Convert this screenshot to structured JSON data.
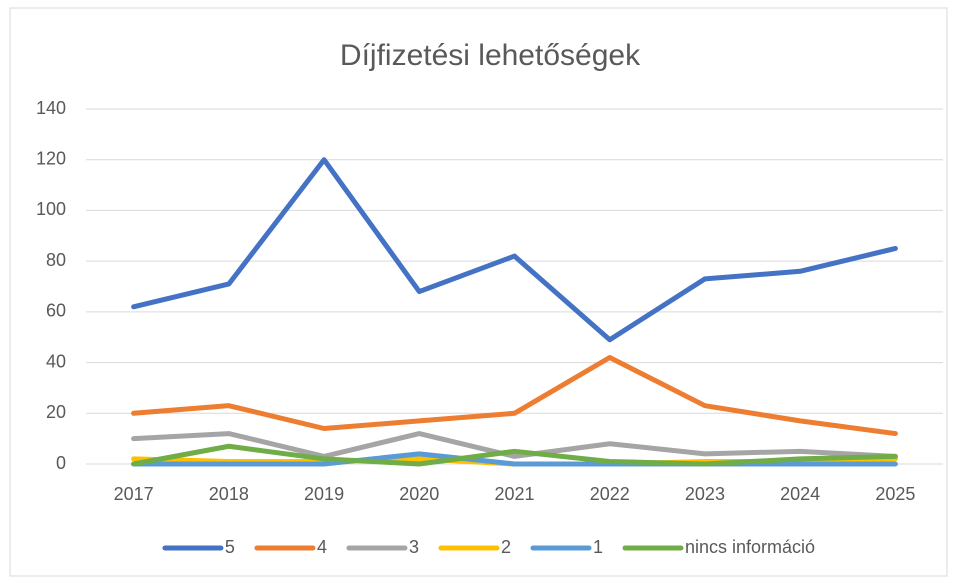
{
  "chart_data": {
    "type": "line",
    "title": "Díjfizetési lehetőségek",
    "categories": [
      "2017",
      "2018",
      "2019",
      "2020",
      "2021",
      "2022",
      "2023",
      "2024",
      "2025"
    ],
    "series": [
      {
        "name": "5",
        "color": "#4472c4",
        "values": [
          62,
          71,
          120,
          68,
          82,
          49,
          73,
          76,
          85
        ]
      },
      {
        "name": "4",
        "color": "#ed7d31",
        "values": [
          20,
          23,
          14,
          17,
          20,
          42,
          23,
          17,
          12
        ]
      },
      {
        "name": "3",
        "color": "#a5a5a5",
        "values": [
          10,
          12,
          3,
          12,
          3,
          8,
          4,
          5,
          3
        ]
      },
      {
        "name": "2",
        "color": "#ffc000",
        "values": [
          2,
          1,
          1,
          2,
          0,
          0,
          1,
          1,
          2
        ]
      },
      {
        "name": "1",
        "color": "#5b9bd5",
        "values": [
          0,
          0,
          0,
          4,
          0,
          0,
          0,
          0,
          0
        ]
      },
      {
        "name": "nincs információ",
        "color": "#70ad47",
        "values": [
          0,
          7,
          2,
          0,
          5,
          1,
          0,
          2,
          3
        ]
      }
    ],
    "ylim": [
      0,
      140
    ],
    "yticks": [
      0,
      20,
      40,
      60,
      80,
      100,
      120,
      140
    ],
    "grid": true,
    "legend": "bottom"
  }
}
